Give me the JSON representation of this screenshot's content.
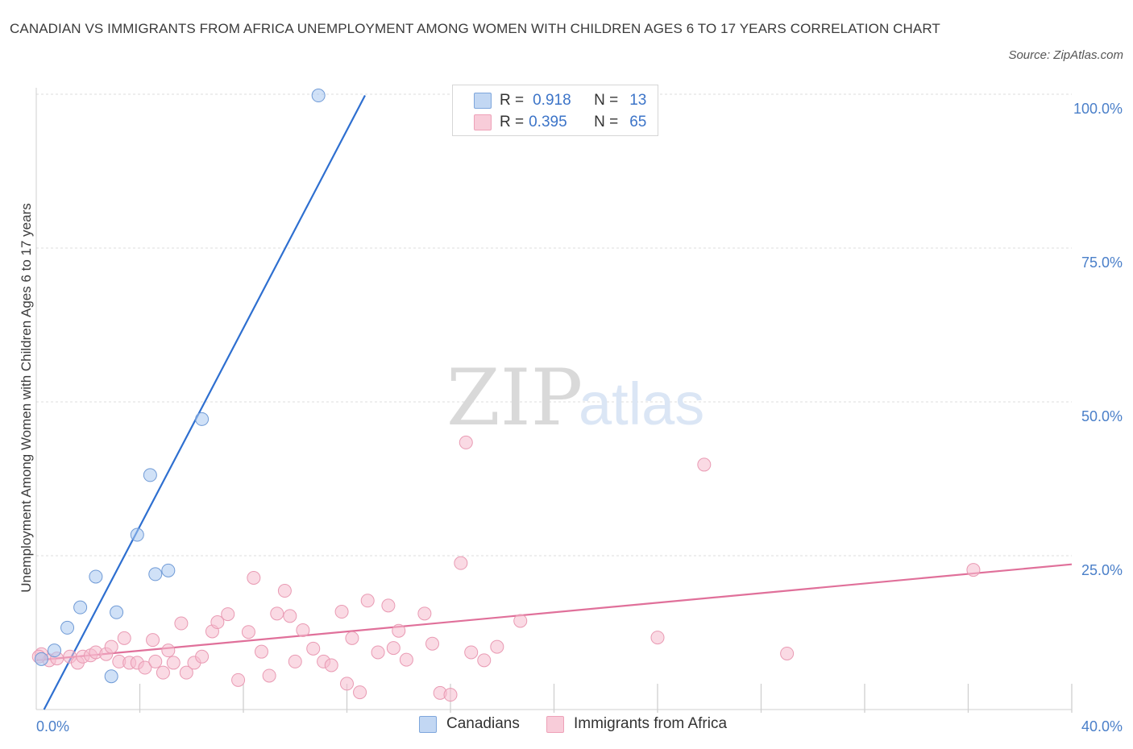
{
  "title": "CANADIAN VS IMMIGRANTS FROM AFRICA UNEMPLOYMENT AMONG WOMEN WITH CHILDREN AGES 6 TO 17 YEARS CORRELATION CHART",
  "source": "Source: ZipAtlas.com",
  "watermark": {
    "zip": "ZIP",
    "atlas": "atlas"
  },
  "legend": {
    "rows": [
      {
        "r_label": "R =",
        "r_value": "0.918",
        "n_label": "N =",
        "n_value": "13",
        "color": "#aac8f0"
      },
      {
        "r_label": "R =",
        "r_value": "0.395",
        "n_label": "N =",
        "n_value": "65",
        "color": "#f6bccd"
      }
    ]
  },
  "bottom_legend": [
    {
      "label": "Canadians",
      "color": "#aac8f0"
    },
    {
      "label": "Immigrants from Africa",
      "color": "#f6bccd"
    }
  ],
  "chart_data": {
    "type": "scatter",
    "xlabel": "",
    "ylabel": "Unemployment Among Women with Children Ages 6 to 17 years",
    "xlim": [
      0,
      40
    ],
    "ylim": [
      0,
      100
    ],
    "x_tick_labels": [
      "0.0%",
      "40.0%"
    ],
    "y_tick_values": [
      25,
      50,
      75,
      100
    ],
    "y_tick_labels": [
      "25.0%",
      "50.0%",
      "75.0%",
      "100.0%"
    ],
    "series": [
      {
        "name": "Canadians",
        "color": "#aac8f0",
        "stroke": "#6f9ad6",
        "line_color": "#2e6fd0",
        "trend": {
          "x": [
            0.3,
            12.7
          ],
          "y": [
            0.0,
            99.8
          ]
        },
        "points": [
          [
            10.9,
            99.8
          ],
          [
            6.4,
            47.2
          ],
          [
            4.4,
            38.1
          ],
          [
            3.9,
            28.4
          ],
          [
            5.1,
            22.6
          ],
          [
            4.6,
            22.0
          ],
          [
            2.3,
            21.6
          ],
          [
            1.7,
            16.6
          ],
          [
            3.1,
            15.8
          ],
          [
            1.2,
            13.3
          ],
          [
            0.7,
            9.6
          ],
          [
            0.2,
            8.2
          ],
          [
            2.9,
            5.4
          ]
        ]
      },
      {
        "name": "Immigrants from Africa",
        "color": "#f6bccd",
        "stroke": "#e99ab3",
        "line_color": "#e0709a",
        "trend": {
          "x": [
            0.0,
            40.0
          ],
          "y": [
            8.0,
            23.6
          ]
        },
        "points": [
          [
            0.2,
            9.0
          ],
          [
            0.5,
            8.0
          ],
          [
            0.8,
            8.3
          ],
          [
            1.3,
            8.6
          ],
          [
            1.6,
            7.6
          ],
          [
            1.8,
            8.6
          ],
          [
            2.1,
            8.8
          ],
          [
            2.3,
            9.3
          ],
          [
            2.7,
            9.0
          ],
          [
            2.9,
            10.2
          ],
          [
            3.2,
            7.8
          ],
          [
            3.4,
            11.6
          ],
          [
            3.6,
            7.6
          ],
          [
            3.9,
            7.6
          ],
          [
            4.2,
            6.8
          ],
          [
            4.5,
            11.3
          ],
          [
            4.6,
            7.8
          ],
          [
            4.9,
            6.0
          ],
          [
            5.1,
            9.6
          ],
          [
            5.3,
            7.6
          ],
          [
            5.6,
            14.0
          ],
          [
            5.8,
            6.0
          ],
          [
            6.1,
            7.6
          ],
          [
            6.4,
            8.6
          ],
          [
            6.8,
            12.7
          ],
          [
            7.0,
            14.2
          ],
          [
            7.4,
            15.5
          ],
          [
            7.8,
            4.8
          ],
          [
            8.2,
            12.6
          ],
          [
            8.4,
            21.4
          ],
          [
            8.7,
            9.4
          ],
          [
            9.0,
            5.5
          ],
          [
            9.3,
            15.6
          ],
          [
            9.6,
            19.3
          ],
          [
            9.8,
            15.2
          ],
          [
            10.0,
            7.8
          ],
          [
            10.3,
            12.9
          ],
          [
            10.7,
            9.9
          ],
          [
            11.1,
            7.8
          ],
          [
            11.4,
            7.2
          ],
          [
            11.8,
            15.9
          ],
          [
            12.0,
            4.2
          ],
          [
            12.2,
            11.6
          ],
          [
            12.5,
            2.8
          ],
          [
            12.8,
            17.7
          ],
          [
            13.2,
            9.3
          ],
          [
            13.6,
            16.9
          ],
          [
            13.8,
            10.0
          ],
          [
            14.0,
            12.8
          ],
          [
            14.3,
            8.1
          ],
          [
            15.0,
            15.6
          ],
          [
            15.3,
            10.7
          ],
          [
            15.6,
            2.7
          ],
          [
            16.0,
            2.4
          ],
          [
            16.4,
            23.8
          ],
          [
            16.6,
            43.4
          ],
          [
            16.8,
            9.3
          ],
          [
            17.3,
            8.0
          ],
          [
            17.8,
            10.2
          ],
          [
            18.7,
            14.4
          ],
          [
            24.0,
            11.7
          ],
          [
            25.8,
            39.8
          ],
          [
            29.0,
            9.1
          ],
          [
            36.2,
            22.7
          ],
          [
            0.1,
            8.6
          ]
        ]
      }
    ]
  }
}
